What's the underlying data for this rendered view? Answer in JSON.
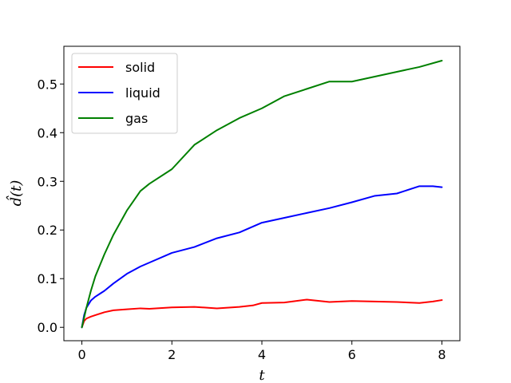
{
  "chart_data": {
    "type": "line",
    "xlabel": "t",
    "ylabel": "d̂(t)",
    "xlim": [
      -0.4,
      8.4
    ],
    "ylim": [
      -0.0275,
      0.5775
    ],
    "x_ticks": [
      0,
      2,
      4,
      6,
      8
    ],
    "x_tick_labels": [
      "0",
      "2",
      "4",
      "6",
      "8"
    ],
    "y_ticks": [
      0.0,
      0.1,
      0.2,
      0.3,
      0.4,
      0.5
    ],
    "y_tick_labels": [
      "0.0",
      "0.1",
      "0.2",
      "0.3",
      "0.4",
      "0.5"
    ],
    "grid": false,
    "legend_position": "upper-left",
    "series": [
      {
        "name": "solid",
        "color": "#ff0000",
        "x": [
          0,
          0.05,
          0.1,
          0.2,
          0.3,
          0.5,
          0.7,
          1.0,
          1.3,
          1.5,
          2.0,
          2.5,
          3.0,
          3.5,
          3.8,
          4.0,
          4.5,
          5.0,
          5.5,
          6.0,
          6.5,
          7.0,
          7.5,
          7.8,
          8.0
        ],
        "values": [
          0.0,
          0.013,
          0.018,
          0.022,
          0.025,
          0.031,
          0.035,
          0.037,
          0.039,
          0.038,
          0.041,
          0.042,
          0.039,
          0.042,
          0.045,
          0.05,
          0.051,
          0.057,
          0.052,
          0.054,
          0.053,
          0.052,
          0.05,
          0.053,
          0.056
        ]
      },
      {
        "name": "liquid",
        "color": "#0000ff",
        "x": [
          0,
          0.05,
          0.1,
          0.2,
          0.3,
          0.5,
          0.7,
          1.0,
          1.3,
          1.5,
          2.0,
          2.5,
          3.0,
          3.5,
          4.0,
          4.5,
          5.0,
          5.5,
          6.0,
          6.5,
          7.0,
          7.5,
          7.8,
          8.0
        ],
        "values": [
          0.0,
          0.025,
          0.04,
          0.055,
          0.063,
          0.075,
          0.09,
          0.11,
          0.125,
          0.133,
          0.153,
          0.165,
          0.183,
          0.195,
          0.215,
          0.225,
          0.235,
          0.245,
          0.257,
          0.27,
          0.275,
          0.29,
          0.29,
          0.288
        ]
      },
      {
        "name": "gas",
        "color": "#008000",
        "x": [
          0,
          0.05,
          0.1,
          0.2,
          0.3,
          0.5,
          0.7,
          1.0,
          1.3,
          1.5,
          2.0,
          2.5,
          3.0,
          3.5,
          4.0,
          4.5,
          5.0,
          5.5,
          6.0,
          6.5,
          7.0,
          7.5,
          8.0
        ],
        "values": [
          0.0,
          0.02,
          0.04,
          0.075,
          0.105,
          0.15,
          0.19,
          0.24,
          0.28,
          0.295,
          0.325,
          0.375,
          0.405,
          0.43,
          0.45,
          0.475,
          0.49,
          0.505,
          0.505,
          0.515,
          0.525,
          0.535,
          0.548
        ]
      }
    ]
  }
}
